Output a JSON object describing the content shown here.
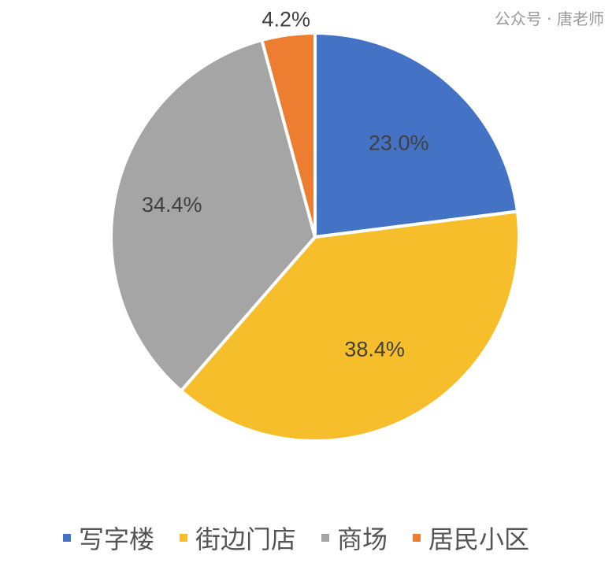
{
  "chart_data": {
    "type": "pie",
    "categories": [
      "写字楼",
      "街边门店",
      "商场",
      "居民小区"
    ],
    "values": [
      23.0,
      38.4,
      34.4,
      4.2
    ],
    "labels": [
      "23.0%",
      "38.4%",
      "34.4%",
      "4.2%"
    ],
    "colors": [
      "#4472C4",
      "#F7BE2B",
      "#A5A5A5",
      "#ED7D31"
    ],
    "start_angle": "12 o'clock",
    "direction": "clockwise",
    "legend_position": "bottom"
  },
  "watermark": "公众号 · 唐老师"
}
